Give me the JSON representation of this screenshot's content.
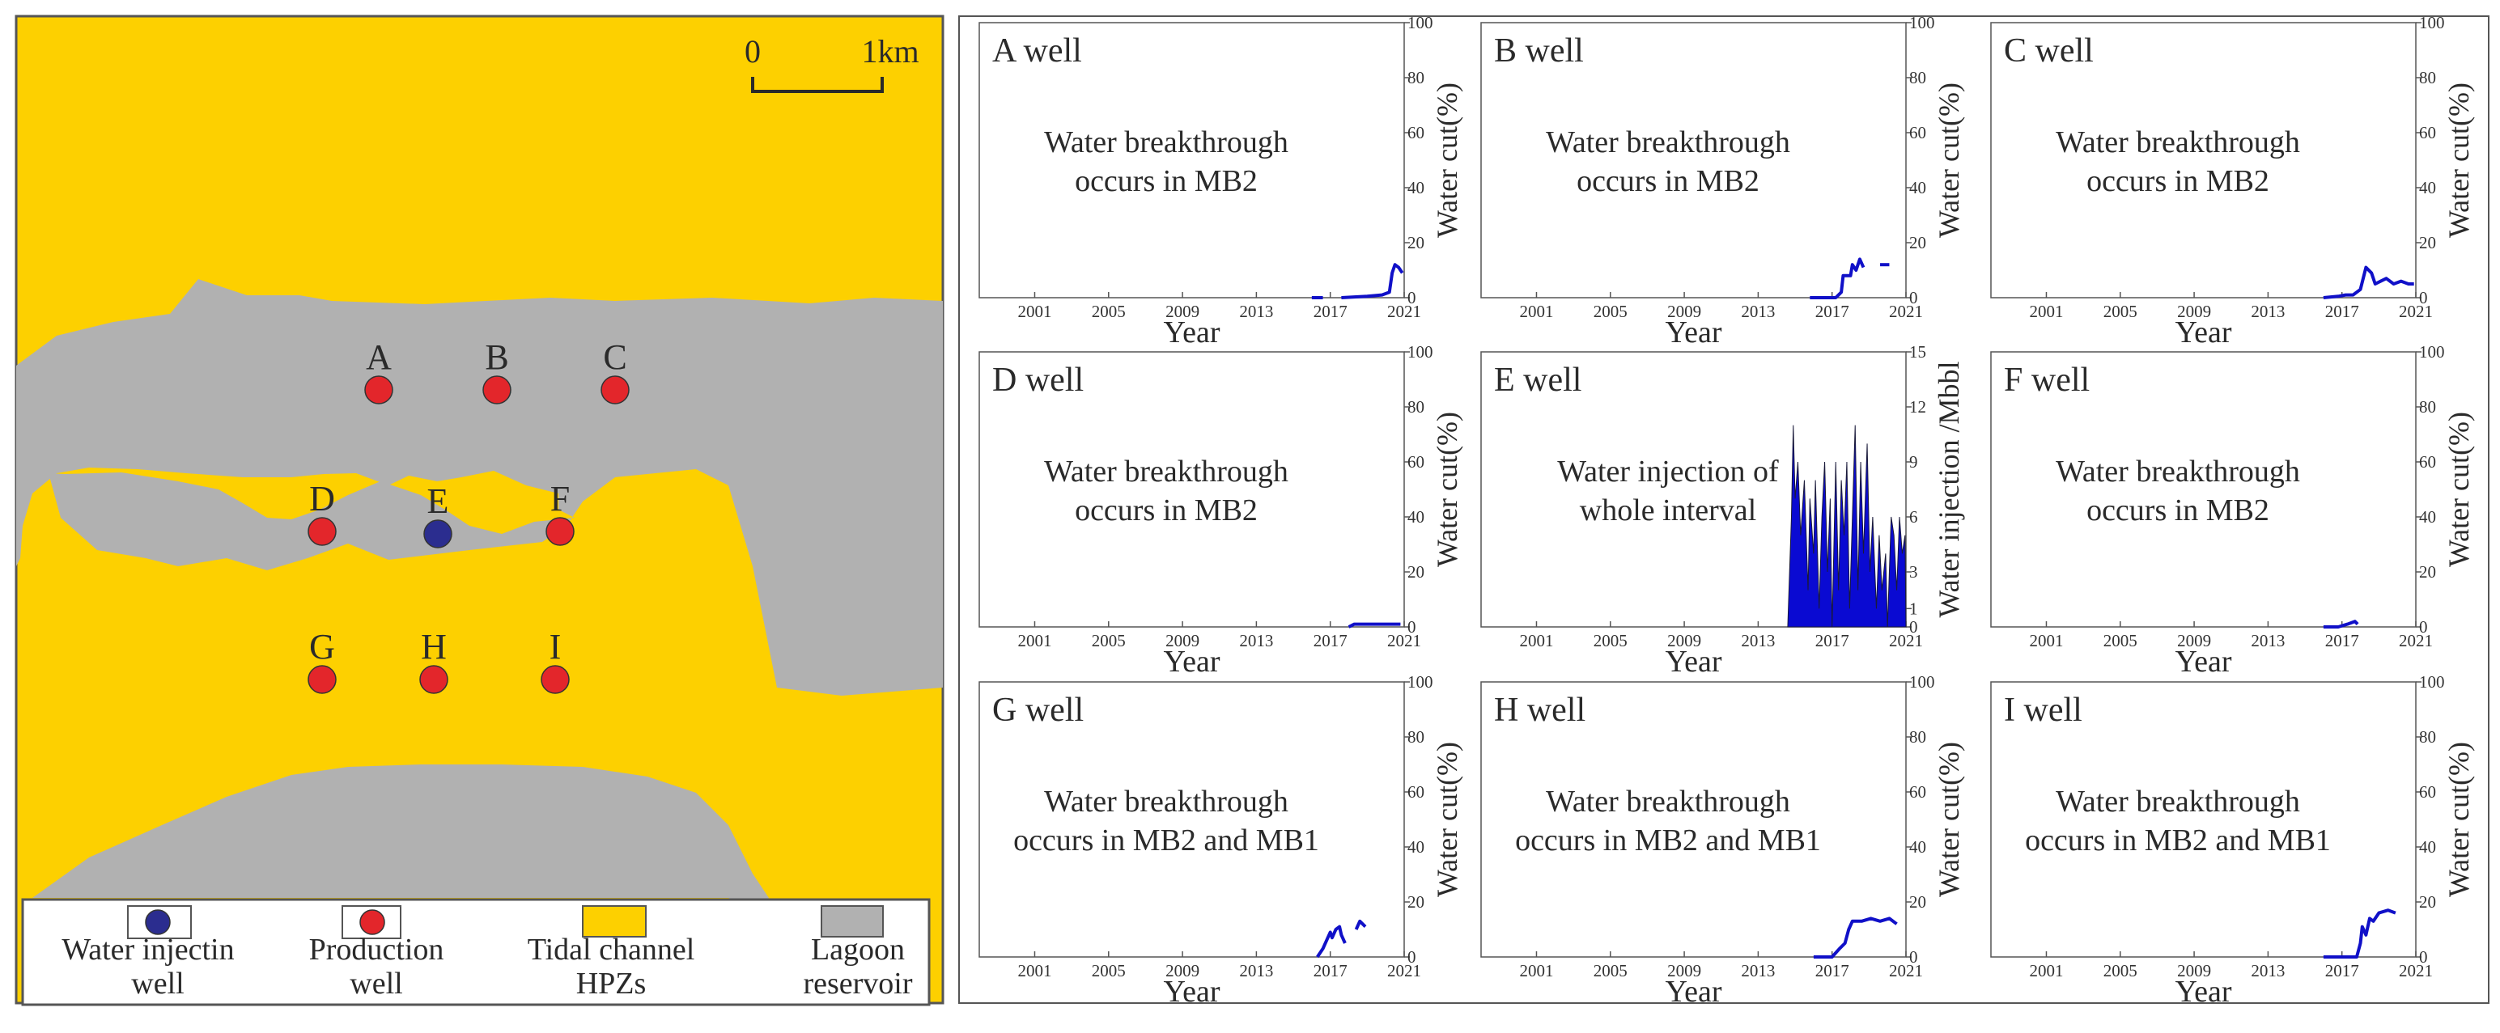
{
  "map": {
    "colors": {
      "hpz": "#FDD000",
      "lagoon": "#B1B1B1",
      "injector": "#2B2D8F",
      "producer": "#E3262B",
      "border": "#555555"
    },
    "scale_bar": {
      "zero": "0",
      "end": "1km"
    },
    "wells": [
      {
        "id": "A",
        "type": "production"
      },
      {
        "id": "B",
        "type": "production"
      },
      {
        "id": "C",
        "type": "production"
      },
      {
        "id": "D",
        "type": "production"
      },
      {
        "id": "E",
        "type": "injection"
      },
      {
        "id": "F",
        "type": "production"
      },
      {
        "id": "G",
        "type": "production"
      },
      {
        "id": "H",
        "type": "production"
      },
      {
        "id": "I",
        "type": "production"
      }
    ],
    "legend": [
      {
        "key": "injector",
        "line1": "Water injectin",
        "line2": "well"
      },
      {
        "key": "producer",
        "line1": "Production",
        "line2": "well"
      },
      {
        "key": "hpz",
        "line1": "Tidal channel",
        "line2": "HPZs"
      },
      {
        "key": "lagoon",
        "line1": "Lagoon",
        "line2": "reservoir"
      }
    ]
  },
  "chart_data": [
    {
      "id": "A",
      "type": "line",
      "title": "A well",
      "annotation": [
        "Water breakthrough",
        "occurs in MB2"
      ],
      "xlabel": "Year",
      "ylabel": "Water cut(%)",
      "xlim": [
        1998,
        2021
      ],
      "ylim": [
        0,
        100
      ],
      "xticks": [
        2001,
        2005,
        2009,
        2013,
        2017,
        2021
      ],
      "yticks": [
        0,
        20,
        40,
        60,
        80,
        100
      ],
      "color": "#1010C8",
      "segments": [
        [
          [
            2016.0,
            0
          ],
          [
            2016.6,
            0
          ]
        ],
        [
          [
            2017.6,
            0
          ],
          [
            2019.0,
            0.5
          ],
          [
            2019.8,
            1
          ],
          [
            2020.2,
            2
          ],
          [
            2020.35,
            9
          ],
          [
            2020.5,
            12
          ],
          [
            2020.7,
            11
          ],
          [
            2020.9,
            9
          ]
        ]
      ]
    },
    {
      "id": "B",
      "type": "line",
      "title": "B well",
      "annotation": [
        "Water breakthrough",
        "occurs in MB2"
      ],
      "xlabel": "Year",
      "ylabel": "Water cut(%)",
      "xlim": [
        1998,
        2021
      ],
      "ylim": [
        0,
        100
      ],
      "xticks": [
        2001,
        2005,
        2009,
        2013,
        2017,
        2021
      ],
      "yticks": [
        0,
        20,
        40,
        60,
        80,
        100
      ],
      "color": "#1010C8",
      "segments": [
        [
          [
            2015.8,
            0
          ],
          [
            2017.2,
            0
          ],
          [
            2017.5,
            2
          ],
          [
            2017.6,
            8
          ],
          [
            2018.0,
            8
          ],
          [
            2018.1,
            12
          ],
          [
            2018.3,
            10
          ],
          [
            2018.5,
            14
          ],
          [
            2018.7,
            11
          ]
        ],
        [
          [
            2019.6,
            12
          ],
          [
            2020.1,
            12
          ]
        ]
      ]
    },
    {
      "id": "C",
      "type": "line",
      "title": "C well",
      "annotation": [
        "Water breakthrough",
        "occurs in MB2"
      ],
      "xlabel": "Year",
      "ylabel": "Water cut(%)",
      "xlim": [
        1998,
        2021
      ],
      "ylim": [
        0,
        100
      ],
      "xticks": [
        2001,
        2005,
        2009,
        2013,
        2017,
        2021
      ],
      "yticks": [
        0,
        20,
        40,
        60,
        80,
        100
      ],
      "color": "#1010C8",
      "segments": [
        [
          [
            2016.0,
            0
          ],
          [
            2016.8,
            0.5
          ],
          [
            2017.2,
            1
          ],
          [
            2017.6,
            1
          ],
          [
            2018.0,
            3
          ],
          [
            2018.3,
            11
          ],
          [
            2018.6,
            9
          ],
          [
            2018.8,
            5
          ],
          [
            2019.1,
            6
          ],
          [
            2019.4,
            7
          ],
          [
            2019.8,
            5
          ],
          [
            2020.2,
            6
          ],
          [
            2020.6,
            5
          ],
          [
            2020.9,
            5
          ]
        ]
      ]
    },
    {
      "id": "D",
      "type": "line",
      "title": "D well",
      "annotation": [
        "Water breakthrough",
        "occurs in MB2"
      ],
      "xlabel": "Year",
      "ylabel": "Water cut(%)",
      "xlim": [
        1998,
        2021
      ],
      "ylim": [
        0,
        100
      ],
      "xticks": [
        2001,
        2005,
        2009,
        2013,
        2017,
        2021
      ],
      "yticks": [
        0,
        20,
        40,
        60,
        80,
        100
      ],
      "color": "#1010C8",
      "segments": [
        [
          [
            2018.0,
            0
          ],
          [
            2018.3,
            1
          ],
          [
            2019.0,
            1
          ],
          [
            2020.0,
            1
          ],
          [
            2020.8,
            1
          ]
        ]
      ]
    },
    {
      "id": "E",
      "type": "area",
      "title": "E well",
      "annotation": [
        "Water  injection  of",
        "whole  interval"
      ],
      "xlabel": "Year",
      "ylabel": "Water injection /Mbbl",
      "xlim": [
        1998,
        2021
      ],
      "ylim": [
        0,
        15
      ],
      "xticks": [
        2001,
        2005,
        2009,
        2013,
        2017,
        2021
      ],
      "yticks": [
        0,
        1,
        3,
        6,
        9,
        12,
        15
      ],
      "color": "#0A0AD2",
      "x": [
        2014.6,
        2014.8,
        2014.9,
        2015.0,
        2015.15,
        2015.3,
        2015.5,
        2015.7,
        2015.8,
        2016.0,
        2016.1,
        2016.3,
        2016.45,
        2016.6,
        2016.75,
        2016.9,
        2017.0,
        2017.2,
        2017.35,
        2017.5,
        2017.65,
        2017.8,
        2017.95,
        2018.1,
        2018.25,
        2018.4,
        2018.55,
        2018.7,
        2018.9,
        2019.05,
        2019.2,
        2019.4,
        2019.55,
        2019.7,
        2019.9,
        2020.0,
        2020.1,
        2020.2,
        2020.35,
        2020.5,
        2020.65,
        2020.8,
        2020.95,
        2021.0
      ],
      "values": [
        0,
        6,
        11,
        7,
        9,
        5,
        8,
        2,
        7,
        4,
        8,
        1,
        6,
        9,
        3,
        7,
        0,
        9,
        2,
        8,
        5,
        9,
        1,
        6,
        11,
        2,
        9,
        4,
        10,
        3,
        6,
        1,
        5,
        2,
        4,
        0,
        3,
        6,
        5,
        2,
        6,
        4,
        5,
        0
      ]
    },
    {
      "id": "F",
      "type": "line",
      "title": "F well",
      "annotation": [
        "Water breakthrough",
        "occurs in MB2"
      ],
      "xlabel": "Year",
      "ylabel": "Water cut(%)",
      "xlim": [
        1998,
        2021
      ],
      "ylim": [
        0,
        100
      ],
      "xticks": [
        2001,
        2005,
        2009,
        2013,
        2017,
        2021
      ],
      "yticks": [
        0,
        20,
        40,
        60,
        80,
        100
      ],
      "color": "#1010C8",
      "segments": [
        [
          [
            2016.0,
            0
          ],
          [
            2016.8,
            0
          ],
          [
            2017.3,
            1
          ],
          [
            2017.7,
            2
          ],
          [
            2017.85,
            1
          ]
        ]
      ]
    },
    {
      "id": "G",
      "type": "line",
      "title": "G well",
      "annotation": [
        "Water breakthrough",
        "occurs in MB2 and MB1"
      ],
      "xlabel": "Year",
      "ylabel": "Water cut(%)",
      "xlim": [
        1998,
        2021
      ],
      "ylim": [
        0,
        100
      ],
      "xticks": [
        2001,
        2005,
        2009,
        2013,
        2017,
        2021
      ],
      "yticks": [
        0,
        20,
        40,
        60,
        80,
        100
      ],
      "color": "#1010C8",
      "segments": [
        [
          [
            2016.3,
            0
          ],
          [
            2016.6,
            3
          ],
          [
            2016.8,
            6
          ],
          [
            2017.0,
            9
          ],
          [
            2017.1,
            7
          ],
          [
            2017.3,
            10
          ],
          [
            2017.5,
            11
          ],
          [
            2017.6,
            8
          ],
          [
            2017.8,
            5
          ]
        ],
        [
          [
            2018.4,
            10
          ],
          [
            2018.6,
            13
          ],
          [
            2018.9,
            11
          ]
        ]
      ]
    },
    {
      "id": "H",
      "type": "line",
      "title": "H well",
      "annotation": [
        "Water breakthrough",
        "occurs in MB2 and MB1"
      ],
      "xlabel": "Year",
      "ylabel": "Water cut(%)",
      "xlim": [
        1998,
        2021
      ],
      "ylim": [
        0,
        100
      ],
      "xticks": [
        2001,
        2005,
        2009,
        2013,
        2017,
        2021
      ],
      "yticks": [
        0,
        20,
        40,
        60,
        80,
        100
      ],
      "color": "#1010C8",
      "segments": [
        [
          [
            2016.0,
            0
          ],
          [
            2017.0,
            0
          ],
          [
            2017.4,
            3
          ],
          [
            2017.7,
            5
          ],
          [
            2017.9,
            10
          ],
          [
            2018.1,
            13
          ],
          [
            2018.6,
            13
          ],
          [
            2019.1,
            14
          ],
          [
            2019.6,
            13
          ],
          [
            2020.1,
            14
          ],
          [
            2020.5,
            12
          ]
        ]
      ]
    },
    {
      "id": "I",
      "type": "line",
      "title": "I well",
      "annotation": [
        "Water breakthrough",
        "occurs in MB2 and MB1"
      ],
      "xlabel": "Year",
      "ylabel": "Water cut(%)",
      "xlim": [
        1998,
        2021
      ],
      "ylim": [
        0,
        100
      ],
      "xticks": [
        2001,
        2005,
        2009,
        2013,
        2017,
        2021
      ],
      "yticks": [
        0,
        20,
        40,
        60,
        80,
        100
      ],
      "color": "#1010C8",
      "segments": [
        [
          [
            2016.0,
            0
          ],
          [
            2017.8,
            0
          ],
          [
            2018.0,
            5
          ],
          [
            2018.1,
            11
          ],
          [
            2018.3,
            8
          ],
          [
            2018.5,
            14
          ],
          [
            2018.7,
            13
          ],
          [
            2019.0,
            16
          ],
          [
            2019.5,
            17
          ],
          [
            2019.9,
            16
          ]
        ]
      ]
    }
  ]
}
